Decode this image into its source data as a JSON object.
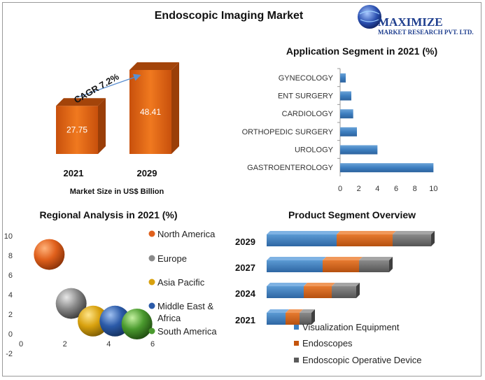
{
  "title": "Endoscopic Imaging Market",
  "logo": {
    "name": "MAXIMIZE",
    "sub": "MARKET RESEARCH PVT. LTD."
  },
  "colors": {
    "orange": "#e36a1a",
    "blue": "#3d7ebf",
    "orange_dark": "#c4540c",
    "gray": "#6b6b6b",
    "bubble_orange": "#e0601c",
    "bubble_gray": "#8a8a8a",
    "bubble_gold": "#d8a10e",
    "bubble_blue": "#2b5aa8",
    "bubble_green": "#4a9a2e"
  },
  "chart_data": [
    {
      "id": "market_size",
      "type": "bar",
      "title": "",
      "xlabel": "Market Size in US$ Billion",
      "categories": [
        "2021",
        "2029"
      ],
      "values": [
        27.75,
        48.41
      ],
      "value_labels": [
        "27.75",
        "48.41"
      ],
      "annotation": "CAGR 7.2%",
      "grid": false
    },
    {
      "id": "application",
      "type": "bar",
      "orientation": "horizontal",
      "title": "Application Segment in 2021 (%)",
      "categories": [
        "GYNECOLOGY",
        "ENT SURGERY",
        "CARDIOLOGY",
        "ORTHOPEDIC SURGERY",
        "UROLOGY",
        "GASTROENTEROLOGY"
      ],
      "values": [
        0.6,
        1.2,
        1.4,
        1.8,
        4.0,
        10.0
      ],
      "xlim": [
        0,
        12
      ],
      "xticks": [
        "0",
        "2",
        "4",
        "6",
        "8",
        "10"
      ],
      "grid": false
    },
    {
      "id": "regional",
      "type": "scatter",
      "title": "Regional Analysis in 2021 (%)",
      "xlim": [
        0,
        6
      ],
      "ylim": [
        -2,
        10
      ],
      "xticks": [
        "0",
        "2",
        "4",
        "6"
      ],
      "yticks": [
        "10",
        "8",
        "6",
        "4",
        "2",
        "0",
        "-2"
      ],
      "series": [
        {
          "name": "North America",
          "x": 1,
          "y": 8.1
        },
        {
          "name": "Europe",
          "x": 2,
          "y": 3.1
        },
        {
          "name": "Asia Pacific",
          "x": 3,
          "y": 1.3
        },
        {
          "name": "Middle East & Africa",
          "x": 4,
          "y": 1.3
        },
        {
          "name": "South America",
          "x": 5,
          "y": 1.0
        }
      ],
      "legend_position": "right",
      "grid": false
    },
    {
      "id": "product",
      "type": "bar",
      "orientation": "horizontal",
      "stacked": true,
      "title": "Product Segment Overview",
      "categories": [
        "2029",
        "2027",
        "2024",
        "2021"
      ],
      "series": [
        {
          "name": "Visualization Equipment",
          "values": [
            100,
            80,
            53,
            27
          ]
        },
        {
          "name": "Endoscopes",
          "values": [
            80,
            52,
            40,
            20
          ]
        },
        {
          "name": "Endoscopic Operative Device",
          "values": [
            55,
            43,
            35,
            17
          ]
        }
      ],
      "legend_position": "bottom"
    }
  ]
}
